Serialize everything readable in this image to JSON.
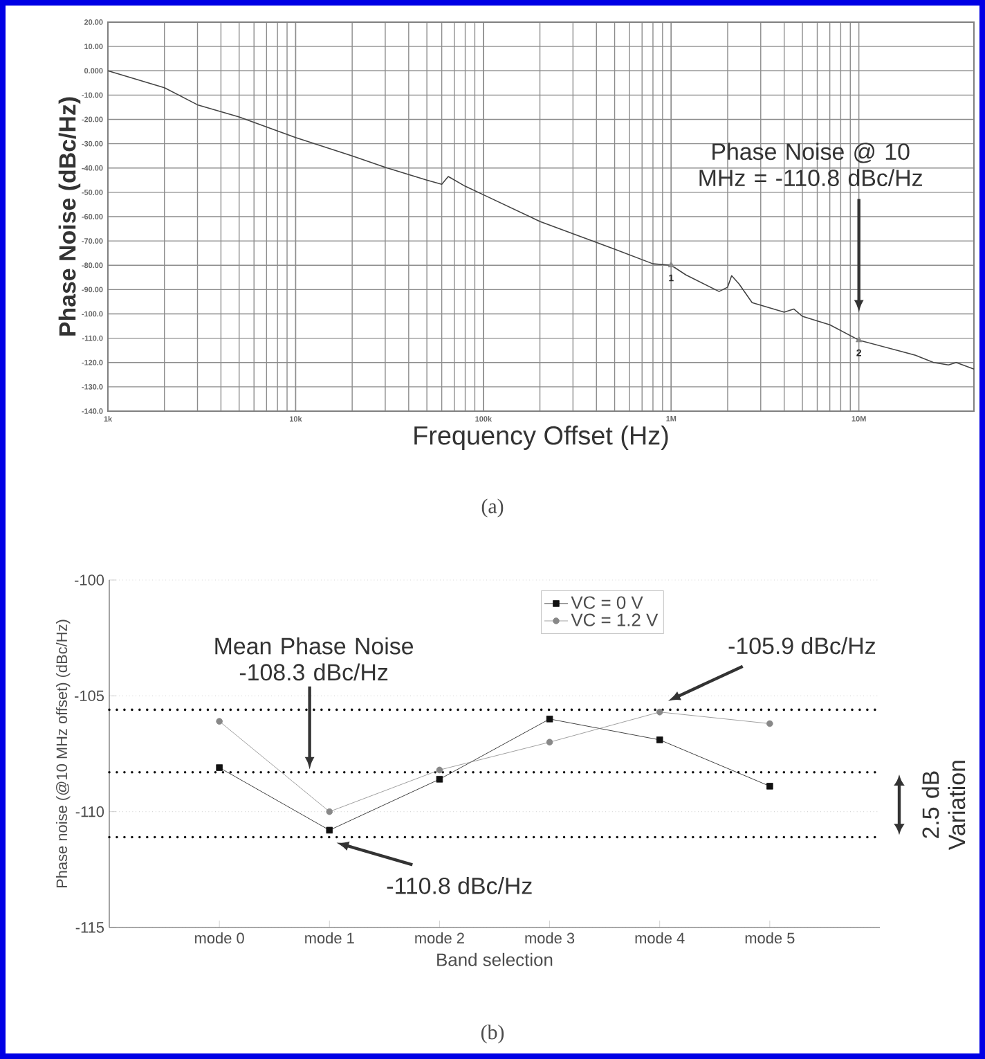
{
  "chart_data": [
    {
      "type": "line",
      "xlabel": "Frequency Offset (Hz)",
      "ylabel": "Phase Noise (dBc/Hz)",
      "log": "x",
      "grid": true,
      "xlim": [
        1000,
        41000000
      ],
      "ylim": [
        -140,
        20
      ],
      "xticks": [
        {
          "value": 1000,
          "label": "1k"
        },
        {
          "value": 10000,
          "label": "10k"
        },
        {
          "value": 100000,
          "label": "100k"
        },
        {
          "value": 1000000,
          "label": "1M"
        },
        {
          "value": 10000000,
          "label": "10M"
        }
      ],
      "yticks": [
        {
          "value": 20,
          "label": "20.00"
        },
        {
          "value": 10,
          "label": "10.00"
        },
        {
          "value": 0,
          "label": "0.000"
        },
        {
          "value": -10,
          "label": "-10.00"
        },
        {
          "value": -20,
          "label": "-20.00"
        },
        {
          "value": -30,
          "label": "-30.00"
        },
        {
          "value": -40,
          "label": "-40.00"
        },
        {
          "value": -50,
          "label": "-50.00"
        },
        {
          "value": -60,
          "label": "-60.00"
        },
        {
          "value": -70,
          "label": "-70.00"
        },
        {
          "value": -80,
          "label": "-80.00"
        },
        {
          "value": -90,
          "label": "-90.00"
        },
        {
          "value": -100,
          "label": "-100.0"
        },
        {
          "value": -110,
          "label": "-110.0"
        },
        {
          "value": -120,
          "label": "-120.0"
        },
        {
          "value": -130,
          "label": "-130.0"
        },
        {
          "value": -140,
          "label": "-140.0"
        }
      ],
      "x": [
        1000,
        2000,
        3000,
        5000,
        10000,
        20000,
        30000,
        50000,
        60000,
        65000,
        80000,
        100000,
        200000,
        500000,
        800000,
        1000000,
        1200000,
        1800000,
        2000000,
        2100000,
        2300000,
        2700000,
        4000000,
        4500000,
        5000000,
        7000000,
        10000000,
        20000000,
        25000000,
        30000000,
        33000000,
        41000000
      ],
      "series": [
        {
          "color": "#888888",
          "type": "scatter",
          "marker": "triangle",
          "x": [
            1000000,
            10000000
          ],
          "values": [
            -80,
            -110.8
          ]
        },
        {
          "color": "#444444",
          "values": [
            0,
            -7,
            -14,
            -19,
            -27.5,
            -35,
            -39.7,
            -45,
            -46.7,
            -43.5,
            -47.5,
            -51,
            -62,
            -73.4,
            -79.4,
            -80,
            -84,
            -90.8,
            -89,
            -84.3,
            -87.7,
            -95.4,
            -99.3,
            -98,
            -101,
            -104.5,
            -110.8,
            -117,
            -120,
            -121,
            -120,
            -122.7
          ]
        }
      ],
      "annotations": [
        "Phase Noise @ 10 MHz = -110.8 dBc/Hz",
        {
          "text": "1",
          "x": 1000000,
          "y": -80
        },
        {
          "text": "2",
          "x": 10000000,
          "y": -110.8
        },
        "(a)"
      ]
    },
    {
      "type": "line",
      "xlabel": "Band selection",
      "ylabel": "Phase noise (@10 MHz offset) (dBc/Hz)",
      "grid": "y",
      "legend": "top",
      "categories": [
        "mode 0",
        "mode 1",
        "mode 2",
        "mode 3",
        "mode 4",
        "mode 5"
      ],
      "ylim": [
        -115,
        -100
      ],
      "yticks": [
        -115,
        -110,
        -105,
        -100
      ],
      "series": [
        {
          "name": "VC = 0 V",
          "color": "#111111",
          "marker": "square",
          "values": [
            -108.1,
            -110.8,
            -108.6,
            -106.0,
            -106.9,
            -108.9
          ]
        },
        {
          "name": "VC = 1.2 V",
          "color": "#888888",
          "marker": "circle",
          "values": [
            -106.1,
            -110.0,
            -108.2,
            -107.0,
            -105.7,
            -106.2
          ]
        }
      ],
      "ref_lines": [
        {
          "axis": "y",
          "value": -105.6,
          "color": "#111111",
          "line_style": "dotted"
        },
        {
          "axis": "y",
          "value": -108.3,
          "color": "#111111",
          "line_style": "dotted"
        },
        {
          "axis": "y",
          "value": -111.1,
          "color": "#111111",
          "line_style": "dotted"
        }
      ],
      "annotations": [
        "Mean Phase Noise -108.3 dBc/Hz",
        "-105.9 dBc/Hz",
        "-110.8 dBc/Hz",
        "2.5 dB Variation",
        "(b)"
      ]
    }
  ]
}
